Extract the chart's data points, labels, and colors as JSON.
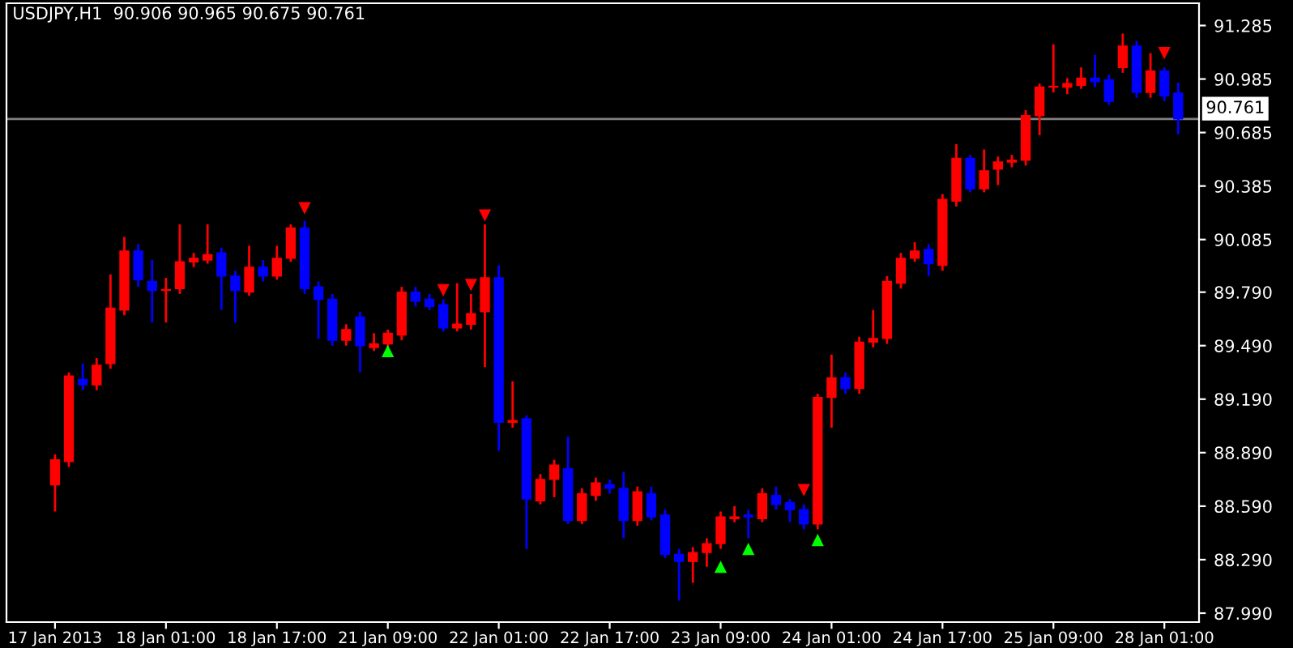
{
  "chart_data": {
    "type": "candlestick",
    "title": "USDJPY,H1  90.906 90.965 90.675 90.761",
    "categories": [
      "17 Jan 2013",
      null,
      null,
      null,
      null,
      null,
      null,
      null,
      "18 Jan 01:00",
      null,
      null,
      null,
      null,
      null,
      null,
      null,
      "18 Jan 17:00",
      null,
      null,
      null,
      null,
      null,
      null,
      null,
      "21 Jan 09:00",
      null,
      null,
      null,
      null,
      null,
      null,
      null,
      "22 Jan 01:00",
      null,
      null,
      null,
      null,
      null,
      null,
      null,
      "22 Jan 17:00",
      null,
      null,
      null,
      null,
      null,
      null,
      null,
      "23 Jan 09:00",
      null,
      null,
      null,
      null,
      null,
      null,
      null,
      "24 Jan 01:00",
      null,
      null,
      null,
      null,
      null,
      null,
      null,
      "24 Jan 17:00",
      null,
      null,
      null,
      null,
      null,
      null,
      null,
      "25 Jan 09:00",
      null,
      null,
      null,
      null,
      null,
      null,
      null,
      "28 Jan 01:00",
      null
    ],
    "ohlc": [
      [
        88.71,
        88.88,
        88.56,
        88.85
      ],
      [
        88.84,
        89.34,
        88.81,
        89.32
      ],
      [
        89.3,
        89.39,
        89.24,
        89.27
      ],
      [
        89.27,
        89.42,
        89.24,
        89.38
      ],
      [
        89.39,
        89.89,
        89.36,
        89.7
      ],
      [
        89.69,
        90.1,
        89.66,
        90.02
      ],
      [
        90.02,
        90.06,
        89.82,
        89.86
      ],
      [
        89.85,
        89.97,
        89.62,
        89.8
      ],
      [
        89.8,
        89.87,
        89.62,
        89.8
      ],
      [
        89.81,
        90.17,
        89.78,
        89.96
      ],
      [
        89.96,
        90.01,
        89.93,
        89.98
      ],
      [
        89.97,
        90.17,
        89.95,
        90.0
      ],
      [
        90.01,
        90.04,
        89.69,
        89.88
      ],
      [
        89.88,
        89.91,
        89.62,
        89.8
      ],
      [
        89.79,
        90.05,
        89.77,
        89.93
      ],
      [
        89.93,
        89.97,
        89.85,
        89.88
      ],
      [
        89.88,
        90.05,
        89.86,
        89.98
      ],
      [
        89.98,
        90.17,
        89.96,
        90.15
      ],
      [
        90.15,
        90.19,
        89.78,
        89.81
      ],
      [
        89.82,
        89.85,
        89.53,
        89.75
      ],
      [
        89.75,
        89.78,
        89.49,
        89.52
      ],
      [
        89.52,
        89.61,
        89.49,
        89.58
      ],
      [
        89.65,
        89.68,
        89.34,
        89.49
      ],
      [
        89.48,
        89.56,
        89.46,
        89.5
      ],
      [
        89.5,
        89.58,
        89.48,
        89.56
      ],
      [
        89.55,
        89.82,
        89.52,
        89.79
      ],
      [
        89.79,
        89.82,
        89.71,
        89.74
      ],
      [
        89.75,
        89.78,
        89.69,
        89.71
      ],
      [
        89.72,
        89.75,
        89.57,
        89.59
      ],
      [
        89.59,
        89.84,
        89.57,
        89.61
      ],
      [
        89.61,
        89.78,
        89.58,
        89.67
      ],
      [
        89.68,
        90.17,
        89.37,
        89.87
      ],
      [
        89.87,
        89.94,
        88.9,
        89.06
      ],
      [
        89.06,
        89.29,
        89.03,
        89.07
      ],
      [
        89.08,
        89.1,
        88.35,
        88.63
      ],
      [
        88.62,
        88.77,
        88.6,
        88.74
      ],
      [
        88.74,
        88.85,
        88.64,
        88.82
      ],
      [
        88.8,
        88.98,
        88.49,
        88.51
      ],
      [
        88.51,
        88.69,
        88.49,
        88.66
      ],
      [
        88.65,
        88.75,
        88.62,
        88.72
      ],
      [
        88.71,
        88.74,
        88.66,
        88.69
      ],
      [
        88.69,
        88.78,
        88.41,
        88.51
      ],
      [
        88.51,
        88.7,
        88.48,
        88.67
      ],
      [
        88.66,
        88.7,
        88.51,
        88.53
      ],
      [
        88.54,
        88.57,
        88.3,
        88.32
      ],
      [
        88.32,
        88.35,
        88.06,
        88.28
      ],
      [
        88.28,
        88.36,
        88.16,
        88.33
      ],
      [
        88.33,
        88.41,
        88.25,
        88.38
      ],
      [
        88.38,
        88.56,
        88.35,
        88.53
      ],
      [
        88.52,
        88.59,
        88.5,
        88.53
      ],
      [
        88.54,
        88.57,
        88.41,
        88.53
      ],
      [
        88.52,
        88.69,
        88.5,
        88.66
      ],
      [
        88.65,
        88.7,
        88.57,
        88.6
      ],
      [
        88.61,
        88.63,
        88.5,
        88.57
      ],
      [
        88.57,
        88.6,
        88.46,
        88.49
      ],
      [
        88.49,
        89.22,
        88.46,
        89.2
      ],
      [
        89.2,
        89.44,
        89.03,
        89.31
      ],
      [
        89.31,
        89.34,
        89.22,
        89.25
      ],
      [
        89.25,
        89.54,
        89.22,
        89.51
      ],
      [
        89.51,
        89.69,
        89.48,
        89.53
      ],
      [
        89.53,
        89.88,
        89.5,
        89.85
      ],
      [
        89.84,
        90.01,
        89.81,
        89.98
      ],
      [
        89.98,
        90.07,
        89.96,
        90.02
      ],
      [
        90.03,
        90.06,
        89.88,
        89.95
      ],
      [
        89.94,
        90.34,
        89.91,
        90.31
      ],
      [
        90.3,
        90.62,
        90.27,
        90.54
      ],
      [
        90.54,
        90.56,
        90.35,
        90.37
      ],
      [
        90.37,
        90.59,
        90.35,
        90.47
      ],
      [
        90.48,
        90.55,
        90.39,
        90.52
      ],
      [
        90.52,
        90.56,
        90.49,
        90.53
      ],
      [
        90.53,
        90.81,
        90.5,
        90.78
      ],
      [
        90.78,
        90.96,
        90.67,
        90.94
      ],
      [
        90.94,
        91.18,
        90.91,
        90.94
      ],
      [
        90.94,
        90.99,
        90.9,
        90.96
      ],
      [
        90.95,
        91.05,
        90.93,
        90.99
      ],
      [
        90.99,
        91.12,
        90.94,
        90.97
      ],
      [
        90.98,
        91.01,
        90.84,
        90.86
      ],
      [
        91.05,
        91.24,
        91.02,
        91.17
      ],
      [
        91.17,
        91.2,
        90.88,
        90.91
      ],
      [
        90.91,
        91.13,
        90.88,
        91.03
      ],
      [
        91.03,
        91.05,
        90.86,
        90.89
      ],
      [
        90.906,
        90.965,
        90.675,
        90.761
      ]
    ],
    "colors": [
      "#ff0000",
      "#ff0000",
      "#0000ff",
      "#ff0000",
      "#ff0000",
      "#ff0000",
      "#0000ff",
      "#0000ff",
      "#ff0000",
      "#ff0000",
      "#ff0000",
      "#ff0000",
      "#0000ff",
      "#0000ff",
      "#ff0000",
      "#0000ff",
      "#ff0000",
      "#ff0000",
      "#0000ff",
      "#0000ff",
      "#0000ff",
      "#ff0000",
      "#0000ff",
      "#ff0000",
      "#ff0000",
      "#ff0000",
      "#0000ff",
      "#0000ff",
      "#0000ff",
      "#ff0000",
      "#ff0000",
      "#ff0000",
      "#0000ff",
      "#ff0000",
      "#0000ff",
      "#ff0000",
      "#ff0000",
      "#0000ff",
      "#ff0000",
      "#ff0000",
      "#0000ff",
      "#0000ff",
      "#ff0000",
      "#0000ff",
      "#0000ff",
      "#0000ff",
      "#ff0000",
      "#ff0000",
      "#ff0000",
      "#ff0000",
      "#0000ff",
      "#ff0000",
      "#0000ff",
      "#0000ff",
      "#0000ff",
      "#ff0000",
      "#ff0000",
      "#0000ff",
      "#ff0000",
      "#ff0000",
      "#ff0000",
      "#ff0000",
      "#ff0000",
      "#0000ff",
      "#ff0000",
      "#ff0000",
      "#0000ff",
      "#ff0000",
      "#ff0000",
      "#ff0000",
      "#ff0000",
      "#ff0000",
      "#ff0000",
      "#ff0000",
      "#ff0000",
      "#0000ff",
      "#0000ff",
      "#ff0000",
      "#0000ff",
      "#ff0000",
      "#0000ff",
      "#0000ff"
    ],
    "series": [
      {
        "type": "scatter",
        "marker": "triangle_down",
        "color": "#ff0000",
        "values": [
          null,
          null,
          null,
          null,
          null,
          null,
          null,
          null,
          null,
          null,
          null,
          null,
          null,
          null,
          null,
          null,
          null,
          null,
          90.26,
          null,
          null,
          null,
          null,
          null,
          null,
          null,
          null,
          null,
          89.8,
          null,
          89.83,
          90.22,
          null,
          null,
          null,
          null,
          null,
          null,
          null,
          null,
          null,
          null,
          null,
          null,
          null,
          null,
          null,
          null,
          null,
          null,
          null,
          null,
          null,
          null,
          88.68,
          null,
          null,
          null,
          null,
          null,
          null,
          null,
          null,
          null,
          null,
          null,
          null,
          null,
          null,
          null,
          null,
          null,
          null,
          null,
          null,
          null,
          null,
          null,
          null,
          null,
          91.13,
          null
        ]
      },
      {
        "type": "scatter",
        "marker": "triangle",
        "color": "#00ff00",
        "values": [
          null,
          null,
          null,
          null,
          null,
          null,
          null,
          null,
          null,
          null,
          null,
          null,
          null,
          null,
          null,
          null,
          null,
          null,
          null,
          null,
          null,
          null,
          null,
          null,
          89.46,
          null,
          null,
          null,
          null,
          null,
          null,
          null,
          null,
          null,
          null,
          null,
          null,
          null,
          null,
          null,
          null,
          null,
          null,
          null,
          null,
          null,
          null,
          null,
          88.25,
          null,
          88.35,
          null,
          null,
          null,
          null,
          88.4,
          null,
          null,
          null,
          null,
          null,
          null,
          null,
          null,
          null,
          null,
          null,
          null,
          null,
          null,
          null,
          null,
          null,
          null,
          null,
          null,
          null,
          null,
          null,
          null,
          null,
          null
        ]
      }
    ],
    "ylim": [
      87.94,
      91.41
    ],
    "yticks": [
      {
        "value": 87.99,
        "label": "87.990"
      },
      {
        "value": 88.29,
        "label": "88.290"
      },
      {
        "value": 88.59,
        "label": "88.590"
      },
      {
        "value": 88.89,
        "label": "88.890"
      },
      {
        "value": 89.19,
        "label": "89.190"
      },
      {
        "value": 89.49,
        "label": "89.490"
      },
      {
        "value": 89.79,
        "label": "89.790"
      },
      {
        "value": 90.085,
        "label": "90.085"
      },
      {
        "value": 90.385,
        "label": "90.385"
      },
      {
        "value": 90.685,
        "label": "90.685"
      },
      {
        "value": 90.985,
        "label": "90.985"
      },
      {
        "value": 91.285,
        "label": "91.285"
      }
    ],
    "ref_lines": [
      {
        "axis": "y",
        "value": 90.761,
        "label": "90.761",
        "color": "#808080"
      }
    ],
    "grid": false,
    "legend": false
  }
}
